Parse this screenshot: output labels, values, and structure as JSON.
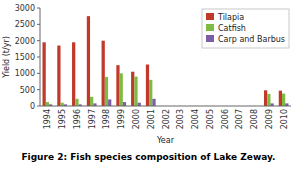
{
  "chart_data": {
    "type": "bar",
    "title": "Figure 2: Fish species composition of Lake Zeway.",
    "xlabel": "Year",
    "ylabel": "Yield (t/yr)",
    "categories": [
      "1994",
      "1995",
      "1996",
      "1997",
      "1998",
      "1999",
      "2000",
      "2001",
      "2002",
      "2003",
      "2004",
      "2005",
      "2006",
      "2007",
      "2008",
      "2009",
      "2010"
    ],
    "series": [
      {
        "name": "Tilapia",
        "color": "#c0392b",
        "values": [
          1950,
          1850,
          1950,
          2750,
          2000,
          1250,
          1050,
          1270,
          0,
          0,
          0,
          0,
          0,
          0,
          0,
          480,
          470
        ]
      },
      {
        "name": "Catfish",
        "color": "#7dbb42",
        "values": [
          120,
          100,
          220,
          280,
          890,
          1000,
          900,
          800,
          0,
          0,
          0,
          0,
          0,
          0,
          0,
          370,
          380
        ]
      },
      {
        "name": "Carp and Barbus",
        "color": "#7b5ea7",
        "values": [
          50,
          50,
          50,
          80,
          200,
          120,
          100,
          220,
          0,
          0,
          0,
          0,
          0,
          0,
          0,
          80,
          80
        ]
      }
    ],
    "ylim": [
      0,
      3000
    ],
    "yticks": [
      0,
      500,
      1000,
      1500,
      2000,
      2500,
      3000
    ],
    "grid": false,
    "legend": "upper right"
  }
}
